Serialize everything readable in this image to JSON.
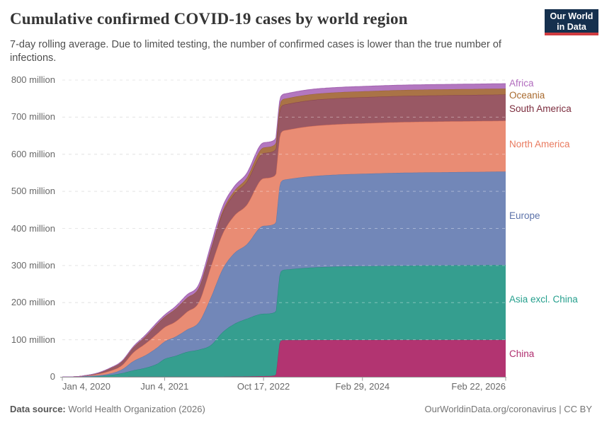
{
  "header": {
    "title": "Cumulative confirmed COVID-19 cases by world region",
    "subtitle_line1": "7-day rolling average. Due to limited testing, the number of confirmed cases is lower than the true number of",
    "subtitle_line2": "infections.",
    "logo_line1": "Our World",
    "logo_line2": "in Data"
  },
  "footer": {
    "datasource_label": "Data source:",
    "datasource_value": " World Health Organization (2026)",
    "license_link": "OurWorldinData.org/coronavirus | CC BY"
  },
  "colors": {
    "grid": "#d8d8d8",
    "grid_overlay": "rgba(255,255,255,0.38)",
    "axis": "#9a9a9a",
    "tick_text": "#696969",
    "logo_bg": "#15304e",
    "logo_bar": "#cf3b40"
  },
  "chart_data": {
    "type": "area",
    "stacked": true,
    "title": "Cumulative confirmed COVID-19 cases by world region",
    "xlabel": "",
    "ylabel": "",
    "y_axis": {
      "min": 0,
      "max": 800,
      "ticks": [
        {
          "v": 0,
          "label": "0"
        },
        {
          "v": 100,
          "label": "100 million"
        },
        {
          "v": 200,
          "label": "200 million"
        },
        {
          "v": 300,
          "label": "300 million"
        },
        {
          "v": 400,
          "label": "400 million"
        },
        {
          "v": 500,
          "label": "500 million"
        },
        {
          "v": 600,
          "label": "600 million"
        },
        {
          "v": 700,
          "label": "700 million"
        },
        {
          "v": 800,
          "label": "800 million"
        }
      ]
    },
    "x_axis": {
      "start_date": "Jan 4, 2020",
      "end_day": 2241,
      "ticks": [
        {
          "day": 0,
          "label": "Jan 4, 2020",
          "align": "left"
        },
        {
          "day": 517,
          "label": "Jun 4, 2021",
          "align": "center"
        },
        {
          "day": 1017,
          "label": "Oct 17, 2022",
          "align": "center"
        },
        {
          "day": 1517,
          "label": "Feb 29, 2024",
          "align": "center"
        },
        {
          "day": 2241,
          "label": "Feb 22, 2026",
          "align": "right"
        }
      ]
    },
    "x_days": [
      0,
      60,
      120,
      180,
      240,
      300,
      360,
      420,
      480,
      517,
      570,
      630,
      690,
      750,
      810,
      870,
      930,
      1017,
      1078,
      1090,
      1102,
      1130,
      1250,
      1400,
      1517,
      1700,
      1900,
      2100,
      2241
    ],
    "unit": "million cases",
    "series": [
      {
        "name": "China",
        "fill": "#b23471",
        "stroke": "#9c2a62",
        "label_color": "#b02e6f",
        "label_y": 501,
        "values": [
          0,
          0.08,
          0.08,
          0.08,
          0.09,
          0.09,
          0.1,
          0.1,
          0.1,
          0.1,
          0.1,
          0.1,
          0.1,
          0.12,
          0.2,
          0.8,
          0.9,
          2,
          4,
          55,
          97,
          99,
          99.2,
          99.3,
          99.3,
          99.4,
          99.4,
          99.4,
          99.4
        ]
      },
      {
        "name": "Asia excl. China",
        "fill": "#359e8f",
        "stroke": "#27897c",
        "label_color": "#259f8d",
        "label_y": 424,
        "values": [
          0,
          0.01,
          0.3,
          1.6,
          4.6,
          9.5,
          17.5,
          24,
          35,
          48,
          56,
          67,
          73,
          85,
          120,
          142,
          155,
          168,
          171,
          178,
          185,
          190,
          195,
          198,
          199,
          200,
          201,
          201.5,
          202
        ]
      },
      {
        "name": "Europe",
        "fill": "#7287b8",
        "stroke": "#5f76a8",
        "label_color": "#5d73aa",
        "label_y": 306,
        "values": [
          0,
          0.01,
          1.5,
          2.4,
          3.9,
          10,
          25,
          34,
          44,
          47,
          51.5,
          60,
          74,
          128,
          170,
          191,
          200,
          237,
          239,
          240,
          241,
          243,
          246,
          248,
          249,
          250.5,
          251,
          251.5,
          252
        ]
      },
      {
        "name": "North America",
        "fill": "#e98c74",
        "stroke": "#dc7156",
        "label_color": "#e97a5f",
        "label_y": 205,
        "values": [
          0,
          0.001,
          1.3,
          3.5,
          7.2,
          10.9,
          23.5,
          31.5,
          37.5,
          38.5,
          40.5,
          48,
          54,
          82,
          95,
          101,
          106,
          128,
          130,
          131,
          132,
          133,
          135,
          135.7,
          136,
          136.5,
          136.8,
          137,
          137
        ]
      },
      {
        "name": "South America",
        "fill": "#995864",
        "stroke": "#84404e",
        "label_color": "#7c2d3e",
        "label_y": 155,
        "values": [
          0,
          0,
          0.5,
          2.6,
          6.5,
          9.7,
          13.2,
          19,
          26,
          28,
          34,
          37.5,
          38.9,
          46,
          56,
          58.5,
          62,
          68,
          68.5,
          69,
          69.2,
          69.5,
          70,
          70.2,
          70.3,
          70.4,
          70.5,
          70.6,
          70.6
        ]
      },
      {
        "name": "Oceania",
        "fill": "#aa7346",
        "stroke": "#976234",
        "label_color": "#a96b2f",
        "label_y": 136,
        "values": [
          0,
          0,
          0.008,
          0.01,
          0.03,
          0.04,
          0.05,
          0.06,
          0.07,
          0.08,
          0.1,
          0.2,
          0.35,
          2,
          5.5,
          8.2,
          10.5,
          15,
          15.2,
          15.3,
          15.5,
          15.6,
          15.8,
          15.9,
          15.9,
          16,
          16,
          16,
          16
        ]
      },
      {
        "name": "Africa",
        "fill": "#b377c0",
        "stroke": "#a263b0",
        "label_color": "#b16cbe",
        "label_y": 119,
        "values": [
          0,
          0.001,
          0.05,
          0.4,
          1.2,
          1.8,
          2.7,
          3.9,
          4.6,
          4.9,
          6.5,
          8.2,
          8.6,
          11,
          11.6,
          11.9,
          12.3,
          13,
          13,
          13,
          13.1,
          13.1,
          13.2,
          13.2,
          13.3,
          13.3,
          13.3,
          13.3,
          13.3
        ]
      }
    ],
    "legend_position": "right"
  }
}
